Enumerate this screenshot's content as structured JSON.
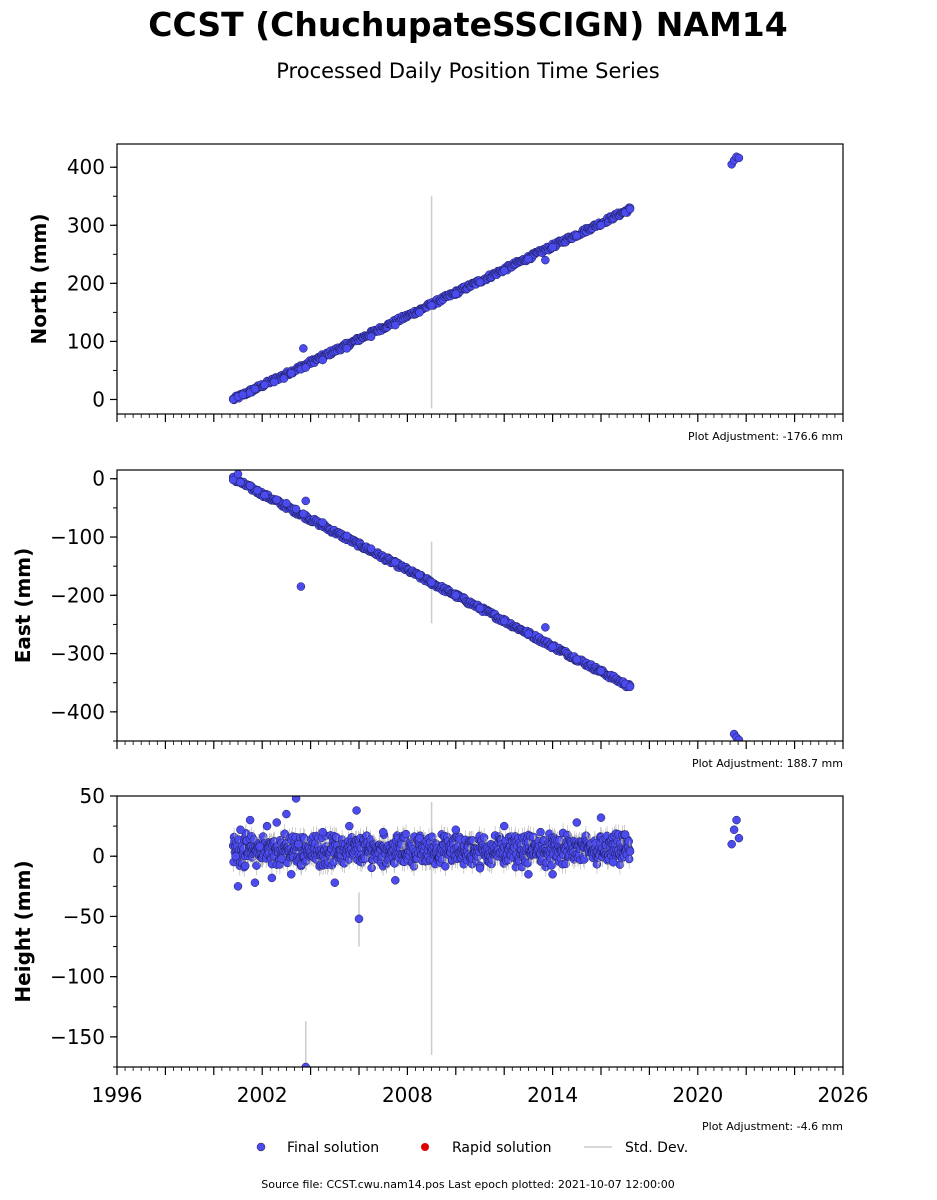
{
  "chart_data": {
    "type": "scatter",
    "title": "CCST (ChuchupateSSCIGN) NAM14",
    "subtitle": "Processed Daily Position Time Series",
    "x_range": [
      1996,
      2026
    ],
    "x_ticks": [
      "1996",
      "2002",
      "2008",
      "2014",
      "2020",
      "2026"
    ],
    "panels": [
      {
        "ylabel": "North (mm)",
        "ylim": [
          -25,
          440
        ],
        "y_ticks": [
          {
            "value": 0,
            "label": "0"
          },
          {
            "value": 100,
            "label": "100"
          },
          {
            "value": 200,
            "label": "200"
          },
          {
            "value": 300,
            "label": "300"
          },
          {
            "value": 400,
            "label": "400"
          }
        ],
        "adjustment": "Plot Adjustment: -176.6 mm",
        "trend": {
          "start": [
            2000.8,
            0
          ],
          "end": [
            2017.2,
            328
          ],
          "spread": 4
        },
        "final_solution": [
          [
            2000.8,
            0
          ],
          [
            2001.0,
            5
          ],
          [
            2001.2,
            8
          ],
          [
            2001.5,
            12
          ],
          [
            2001.7,
            18
          ],
          [
            2002.1,
            25
          ],
          [
            2002.5,
            30
          ],
          [
            2002.9,
            36
          ],
          [
            2003.2,
            45
          ],
          [
            2003.6,
            52
          ],
          [
            2003.7,
            88
          ],
          [
            2003.8,
            55
          ],
          [
            2004.5,
            68
          ],
          [
            2005.5,
            88
          ],
          [
            2006.5,
            108
          ],
          [
            2007.5,
            128
          ],
          [
            2008.5,
            150
          ],
          [
            2009.0,
            162
          ],
          [
            2010.0,
            182
          ],
          [
            2011.0,
            202
          ],
          [
            2012.0,
            222
          ],
          [
            2013.0,
            242
          ],
          [
            2013.7,
            240
          ],
          [
            2014.0,
            262
          ],
          [
            2015.0,
            282
          ],
          [
            2016.0,
            300
          ],
          [
            2017.0,
            322
          ],
          [
            2017.2,
            328
          ],
          [
            2021.4,
            405
          ],
          [
            2021.5,
            412
          ],
          [
            2021.6,
            418
          ],
          [
            2021.7,
            416
          ]
        ],
        "std_dev": [
          {
            "x": 2009.0,
            "low": -15,
            "high": 350
          }
        ]
      },
      {
        "ylabel": "East (mm)",
        "ylim": [
          -450,
          15
        ],
        "y_ticks": [
          {
            "value": 0,
            "label": "0"
          },
          {
            "value": -100,
            "label": "−100"
          },
          {
            "value": -200,
            "label": "−200"
          },
          {
            "value": -300,
            "label": "−300"
          },
          {
            "value": -400,
            "label": "−400"
          }
        ],
        "adjustment": "Plot Adjustment: 188.7 mm",
        "trend": {
          "start": [
            2000.8,
            0
          ],
          "end": [
            2017.2,
            -357
          ],
          "spread": 4
        },
        "final_solution": [
          [
            2000.8,
            -2
          ],
          [
            2001.0,
            8
          ],
          [
            2001.1,
            -6
          ],
          [
            2001.5,
            -12
          ],
          [
            2001.8,
            -20
          ],
          [
            2002.1,
            -28
          ],
          [
            2002.6,
            -36
          ],
          [
            2003.0,
            -42
          ],
          [
            2003.4,
            -52
          ],
          [
            2003.7,
            -60
          ],
          [
            2003.8,
            -38
          ],
          [
            2003.6,
            -185
          ],
          [
            2004.5,
            -75
          ],
          [
            2005.5,
            -98
          ],
          [
            2006.5,
            -120
          ],
          [
            2007.5,
            -143
          ],
          [
            2008.5,
            -165
          ],
          [
            2009.0,
            -178
          ],
          [
            2010.0,
            -200
          ],
          [
            2011.0,
            -222
          ],
          [
            2012.0,
            -244
          ],
          [
            2013.0,
            -266
          ],
          [
            2013.7,
            -255
          ],
          [
            2014.0,
            -288
          ],
          [
            2015.0,
            -310
          ],
          [
            2016.0,
            -330
          ],
          [
            2017.0,
            -352
          ],
          [
            2017.2,
            -357
          ],
          [
            2021.5,
            -438
          ],
          [
            2021.6,
            -444
          ],
          [
            2021.7,
            -448
          ]
        ],
        "std_dev": [
          {
            "x": 2009.0,
            "low": -248,
            "high": -108
          }
        ]
      },
      {
        "ylabel": "Height (mm)",
        "ylim": [
          -175,
          50
        ],
        "y_ticks": [
          {
            "value": 50,
            "label": "50"
          },
          {
            "value": 0,
            "label": "0"
          },
          {
            "value": -50,
            "label": "−50"
          },
          {
            "value": -100,
            "label": "−100"
          },
          {
            "value": -150,
            "label": "−150"
          }
        ],
        "adjustment": "Plot Adjustment: -4.6 mm",
        "band": {
          "x_start": 2000.8,
          "x_end": 2017.2,
          "center": 5,
          "spread": 15
        },
        "final_solution": [
          [
            2000.9,
            0
          ],
          [
            2001.0,
            -25
          ],
          [
            2001.1,
            22
          ],
          [
            2001.3,
            -8
          ],
          [
            2001.5,
            30
          ],
          [
            2001.7,
            -22
          ],
          [
            2001.9,
            8
          ],
          [
            2002.2,
            25
          ],
          [
            2002.4,
            -18
          ],
          [
            2002.6,
            28
          ],
          [
            2002.8,
            -2
          ],
          [
            2003.0,
            35
          ],
          [
            2003.2,
            -15
          ],
          [
            2003.4,
            48
          ],
          [
            2003.5,
            10
          ],
          [
            2003.8,
            -175
          ],
          [
            2004.5,
            20
          ],
          [
            2005.0,
            -22
          ],
          [
            2005.6,
            25
          ],
          [
            2005.9,
            38
          ],
          [
            2006.0,
            -52
          ],
          [
            2007.0,
            20
          ],
          [
            2007.5,
            -20
          ],
          [
            2008.5,
            15
          ],
          [
            2010.0,
            22
          ],
          [
            2011.0,
            -10
          ],
          [
            2012.0,
            25
          ],
          [
            2013.0,
            -15
          ],
          [
            2013.5,
            20
          ],
          [
            2014.0,
            -15
          ],
          [
            2015.0,
            28
          ],
          [
            2016.0,
            32
          ],
          [
            2016.5,
            -5
          ],
          [
            2017.0,
            18
          ],
          [
            2021.4,
            10
          ],
          [
            2021.5,
            22
          ],
          [
            2021.6,
            30
          ],
          [
            2021.7,
            15
          ]
        ],
        "std_dev": [
          {
            "x": 2009.0,
            "low": -165,
            "high": 45
          },
          {
            "x": 2003.8,
            "low": -175,
            "high": -137
          },
          {
            "x": 2006.0,
            "low": -75,
            "high": -30
          }
        ]
      }
    ],
    "legend": {
      "placement": "bottom",
      "entries": [
        {
          "label": "Final solution",
          "color": "#4b4bf0"
        },
        {
          "label": "Rapid solution",
          "color": "#e00000"
        },
        {
          "label": "Std. Dev.",
          "color": "#cccccc"
        }
      ]
    },
    "footer": "Source file: CCST.cwu.nam14.pos  Last epoch plotted: 2021-10-07 12:00:00"
  }
}
